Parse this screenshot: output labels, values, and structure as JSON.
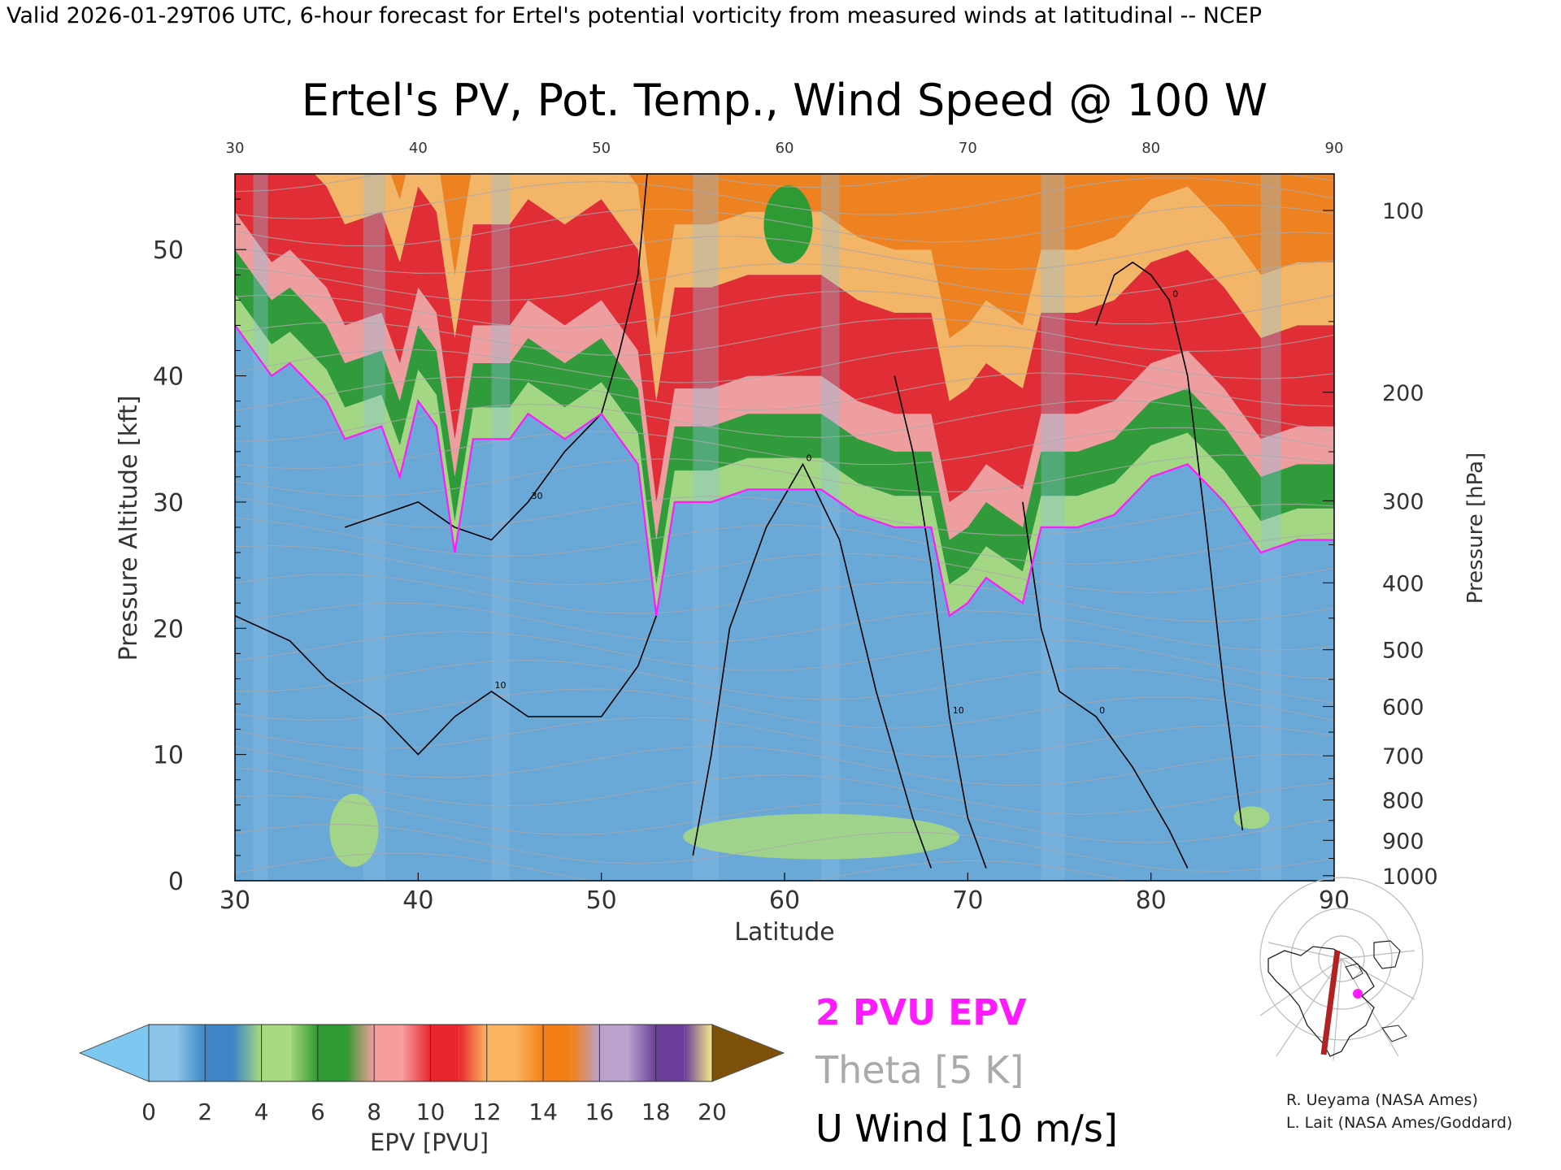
{
  "header": {
    "valid_line": "Valid 2026-01-29T06 UTC, 6-hour forecast for Ertel's potential vorticity from measured winds at latitudinal -- NCEP"
  },
  "chart_data": {
    "type": "heatmap",
    "title": "Ertel's PV, Pot. Temp., Wind Speed @ 100 W",
    "xlabel": "Latitude",
    "ylabel": "Pressure Altitude [kft]",
    "y2label": "Pressure [hPa]",
    "xlim": [
      30,
      90
    ],
    "ylim": [
      0,
      56
    ],
    "x_ticks": [
      "30",
      "40",
      "50",
      "60",
      "70",
      "80",
      "90"
    ],
    "x_top_ticks": [
      "30",
      "40",
      "50",
      "60",
      "70",
      "80",
      "90"
    ],
    "y_ticks": [
      "0",
      "10",
      "20",
      "30",
      "40",
      "50"
    ],
    "pressure_ticks": [
      {
        "label": "100",
        "kft": 53.1
      },
      {
        "label": "200",
        "kft": 38.7
      },
      {
        "label": "300",
        "kft": 30.1
      },
      {
        "label": "400",
        "kft": 23.6
      },
      {
        "label": "500",
        "kft": 18.3
      },
      {
        "label": "600",
        "kft": 13.8
      },
      {
        "label": "700",
        "kft": 9.9
      },
      {
        "label": "800",
        "kft": 6.4
      },
      {
        "label": "900",
        "kft": 3.2
      },
      {
        "label": "1000",
        "kft": 0.4
      }
    ],
    "tropopause_2pvu_kft": [
      {
        "lat": 30,
        "kft": 44
      },
      {
        "lat": 32,
        "kft": 40
      },
      {
        "lat": 33,
        "kft": 41
      },
      {
        "lat": 35,
        "kft": 38
      },
      {
        "lat": 36,
        "kft": 35
      },
      {
        "lat": 38,
        "kft": 36
      },
      {
        "lat": 39,
        "kft": 32
      },
      {
        "lat": 40,
        "kft": 38
      },
      {
        "lat": 41,
        "kft": 36
      },
      {
        "lat": 42,
        "kft": 26
      },
      {
        "lat": 43,
        "kft": 35
      },
      {
        "lat": 45,
        "kft": 35
      },
      {
        "lat": 46,
        "kft": 37
      },
      {
        "lat": 48,
        "kft": 35
      },
      {
        "lat": 50,
        "kft": 37
      },
      {
        "lat": 52,
        "kft": 33
      },
      {
        "lat": 53,
        "kft": 21
      },
      {
        "lat": 54,
        "kft": 30
      },
      {
        "lat": 56,
        "kft": 30
      },
      {
        "lat": 58,
        "kft": 31
      },
      {
        "lat": 60,
        "kft": 31
      },
      {
        "lat": 62,
        "kft": 31
      },
      {
        "lat": 64,
        "kft": 29
      },
      {
        "lat": 66,
        "kft": 28
      },
      {
        "lat": 68,
        "kft": 28
      },
      {
        "lat": 69,
        "kft": 21
      },
      {
        "lat": 70,
        "kft": 22
      },
      {
        "lat": 71,
        "kft": 24
      },
      {
        "lat": 72,
        "kft": 23
      },
      {
        "lat": 73,
        "kft": 22
      },
      {
        "lat": 74,
        "kft": 28
      },
      {
        "lat": 76,
        "kft": 28
      },
      {
        "lat": 78,
        "kft": 29
      },
      {
        "lat": 80,
        "kft": 32
      },
      {
        "lat": 82,
        "kft": 33
      },
      {
        "lat": 84,
        "kft": 30
      },
      {
        "lat": 86,
        "kft": 26
      },
      {
        "lat": 88,
        "kft": 27
      },
      {
        "lat": 90,
        "kft": 27
      }
    ],
    "u_wind_contours": [
      {
        "label": "30",
        "points": [
          [
            36,
            28
          ],
          [
            38,
            29
          ],
          [
            40,
            30
          ],
          [
            42,
            28
          ],
          [
            44,
            27
          ],
          [
            46,
            30
          ],
          [
            48,
            34
          ],
          [
            50,
            37
          ],
          [
            51,
            42
          ],
          [
            52,
            48
          ],
          [
            52.5,
            56
          ]
        ]
      },
      {
        "label": "10",
        "points": [
          [
            30,
            21
          ],
          [
            33,
            19
          ],
          [
            35,
            16
          ],
          [
            38,
            13
          ],
          [
            40,
            10
          ],
          [
            42,
            13
          ],
          [
            44,
            15
          ],
          [
            46,
            13
          ],
          [
            48,
            13
          ],
          [
            50,
            13
          ],
          [
            52,
            17
          ],
          [
            53,
            21
          ]
        ]
      },
      {
        "label": "0",
        "points": [
          [
            55,
            2
          ],
          [
            56,
            10
          ],
          [
            57,
            20
          ],
          [
            59,
            28
          ],
          [
            61,
            33
          ],
          [
            63,
            27
          ],
          [
            65,
            15
          ],
          [
            67,
            5
          ],
          [
            68,
            1
          ]
        ]
      },
      {
        "label": "10",
        "points": [
          [
            66,
            40
          ],
          [
            67,
            34
          ],
          [
            68,
            25
          ],
          [
            69,
            13
          ],
          [
            70,
            5
          ],
          [
            71,
            1
          ]
        ]
      },
      {
        "label": "0",
        "points": [
          [
            73,
            30
          ],
          [
            74,
            20
          ],
          [
            75,
            15
          ],
          [
            77,
            13
          ],
          [
            79,
            9
          ],
          [
            81,
            4
          ],
          [
            82,
            1
          ]
        ]
      },
      {
        "label": "0",
        "points": [
          [
            77,
            44
          ],
          [
            78,
            48
          ],
          [
            79,
            49
          ],
          [
            80,
            48
          ],
          [
            81,
            46
          ],
          [
            82,
            40
          ],
          [
            83,
            28
          ],
          [
            84,
            15
          ],
          [
            85,
            4
          ]
        ]
      }
    ],
    "theta_label": "Theta [5 K]",
    "epv_contour_label": "2 PVU EPV",
    "wind_label": "U Wind [10 m/s]",
    "colorbar": {
      "label": "EPV [PVU]",
      "ticks": [
        "0",
        "2",
        "4",
        "6",
        "8",
        "10",
        "12",
        "14",
        "16",
        "18",
        "20"
      ],
      "colors": [
        "#8bc4e8",
        "#3d85c6",
        "#a8d97e",
        "#2e9a33",
        "#f79d9d",
        "#e8262c",
        "#fbb561",
        "#f57f17",
        "#b9a3cc",
        "#6a3d9a",
        "#f5e98a"
      ],
      "under_color": "#7dc8f1",
      "over_color": "#7d5109"
    }
  },
  "credits": {
    "line1": "R. Ueyama (NASA Ames)",
    "line2": "L. Lait (NASA Ames/Goddard)"
  },
  "colors": {
    "magenta": "#ff1aff",
    "theta": "#aaaaaa",
    "wind": "#000000"
  }
}
